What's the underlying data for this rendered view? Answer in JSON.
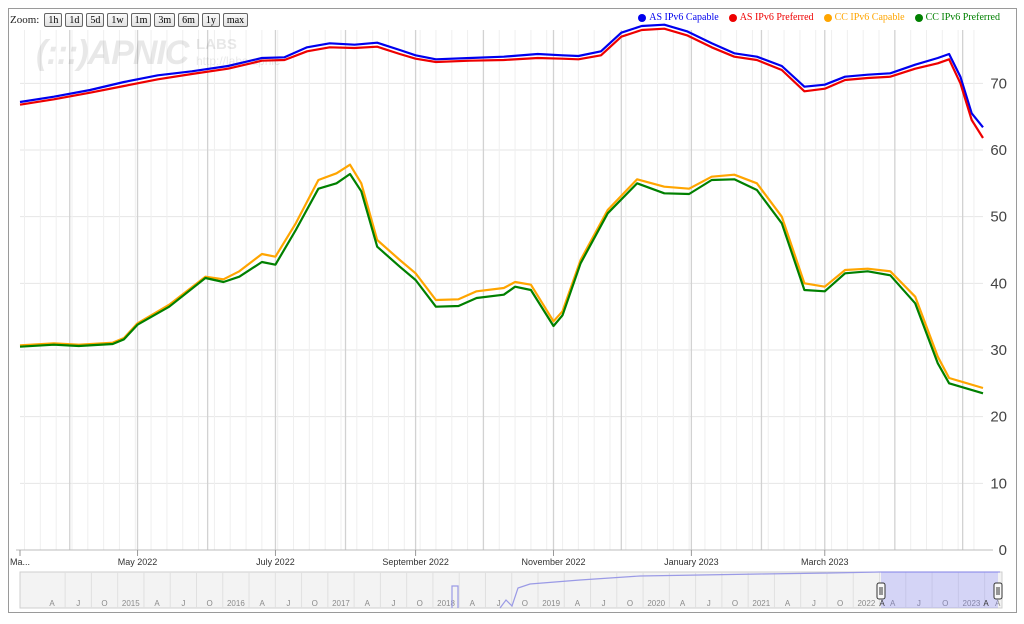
{
  "toolbar": {
    "zoom_label": "Zoom:",
    "buttons": [
      "1h",
      "1d",
      "5d",
      "1w",
      "1m",
      "3m",
      "6m",
      "1y",
      "max"
    ]
  },
  "legend": [
    {
      "label": "AS IPv6 Capable",
      "color": "#0000ee"
    },
    {
      "label": "AS IPv6 Preferred",
      "color": "#ee0000"
    },
    {
      "label": "CC IPv6 Capable",
      "color": "#ffa500"
    },
    {
      "label": "CC IPv6 Preferred",
      "color": "#008000"
    }
  ],
  "watermark": {
    "logo": "(:::)APNIC",
    "labs": "LABS",
    "url": "http://labs.apnic"
  },
  "chart_data": {
    "type": "line",
    "x_axis": {
      "type": "date",
      "range": [
        "2022-03-10",
        "2023-05-10"
      ],
      "tick_labels": [
        {
          "date": "2022-03-10",
          "label": "Ma..."
        },
        {
          "date": "2022-05-01",
          "label": "May 2022"
        },
        {
          "date": "2022-07-01",
          "label": "July 2022"
        },
        {
          "date": "2022-09-01",
          "label": "September 2022"
        },
        {
          "date": "2022-11-01",
          "label": "November 2022"
        },
        {
          "date": "2023-01-01",
          "label": "January 2023"
        },
        {
          "date": "2023-03-01",
          "label": "March 2023"
        }
      ]
    },
    "y_axis": {
      "min": 0,
      "max": 78,
      "ticks": [
        0,
        10,
        20,
        30,
        40,
        50,
        60,
        70
      ],
      "position": "right"
    },
    "grid": true,
    "legend_position": "top-right",
    "series": [
      {
        "name": "AS IPv6 Capable",
        "color": "#0000ee",
        "points": [
          [
            "2022-03-10",
            67.2
          ],
          [
            "2022-03-25",
            68.0
          ],
          [
            "2022-04-10",
            69.0
          ],
          [
            "2022-04-25",
            70.2
          ],
          [
            "2022-05-10",
            71.2
          ],
          [
            "2022-05-25",
            71.8
          ],
          [
            "2022-06-10",
            72.6
          ],
          [
            "2022-06-25",
            73.8
          ],
          [
            "2022-07-05",
            73.9
          ],
          [
            "2022-07-15",
            75.4
          ],
          [
            "2022-07-25",
            76.0
          ],
          [
            "2022-08-05",
            75.8
          ],
          [
            "2022-08-15",
            76.1
          ],
          [
            "2022-08-25",
            75.0
          ],
          [
            "2022-09-01",
            74.2
          ],
          [
            "2022-09-10",
            73.6
          ],
          [
            "2022-09-25",
            73.8
          ],
          [
            "2022-10-10",
            74.0
          ],
          [
            "2022-10-25",
            74.4
          ],
          [
            "2022-11-05",
            74.2
          ],
          [
            "2022-11-12",
            74.1
          ],
          [
            "2022-11-22",
            74.8
          ],
          [
            "2022-12-01",
            77.6
          ],
          [
            "2022-12-10",
            78.6
          ],
          [
            "2022-12-20",
            78.8
          ],
          [
            "2022-12-30",
            77.8
          ],
          [
            "2023-01-10",
            76.0
          ],
          [
            "2023-01-20",
            74.5
          ],
          [
            "2023-01-30",
            74.0
          ],
          [
            "2023-02-10",
            72.6
          ],
          [
            "2023-02-20",
            69.5
          ],
          [
            "2023-03-01",
            69.8
          ],
          [
            "2023-03-10",
            71.0
          ],
          [
            "2023-03-20",
            71.3
          ],
          [
            "2023-03-30",
            71.5
          ],
          [
            "2023-04-10",
            72.8
          ],
          [
            "2023-04-20",
            73.8
          ],
          [
            "2023-04-25",
            74.4
          ],
          [
            "2023-04-30",
            71.0
          ],
          [
            "2023-05-05",
            65.5
          ],
          [
            "2023-05-10",
            63.4
          ]
        ]
      },
      {
        "name": "AS IPv6 Preferred",
        "color": "#ee0000",
        "points": [
          [
            "2022-03-10",
            66.8
          ],
          [
            "2022-03-25",
            67.6
          ],
          [
            "2022-04-10",
            68.6
          ],
          [
            "2022-04-25",
            69.6
          ],
          [
            "2022-05-10",
            70.6
          ],
          [
            "2022-05-25",
            71.4
          ],
          [
            "2022-06-10",
            72.2
          ],
          [
            "2022-06-25",
            73.4
          ],
          [
            "2022-07-05",
            73.5
          ],
          [
            "2022-07-15",
            74.8
          ],
          [
            "2022-07-25",
            75.4
          ],
          [
            "2022-08-05",
            75.3
          ],
          [
            "2022-08-15",
            75.5
          ],
          [
            "2022-08-25",
            74.4
          ],
          [
            "2022-09-01",
            73.7
          ],
          [
            "2022-09-10",
            73.2
          ],
          [
            "2022-09-25",
            73.4
          ],
          [
            "2022-10-10",
            73.5
          ],
          [
            "2022-10-25",
            73.8
          ],
          [
            "2022-11-05",
            73.7
          ],
          [
            "2022-11-12",
            73.6
          ],
          [
            "2022-11-22",
            74.2
          ],
          [
            "2022-12-01",
            77.0
          ],
          [
            "2022-12-10",
            78.0
          ],
          [
            "2022-12-20",
            78.2
          ],
          [
            "2022-12-30",
            77.2
          ],
          [
            "2023-01-10",
            75.4
          ],
          [
            "2023-01-20",
            74.0
          ],
          [
            "2023-01-30",
            73.5
          ],
          [
            "2023-02-10",
            72.0
          ],
          [
            "2023-02-20",
            68.8
          ],
          [
            "2023-03-01",
            69.2
          ],
          [
            "2023-03-10",
            70.5
          ],
          [
            "2023-03-20",
            70.8
          ],
          [
            "2023-03-30",
            71.0
          ],
          [
            "2023-04-10",
            72.2
          ],
          [
            "2023-04-20",
            73.0
          ],
          [
            "2023-04-25",
            73.6
          ],
          [
            "2023-04-30",
            70.0
          ],
          [
            "2023-05-05",
            64.5
          ],
          [
            "2023-05-10",
            61.8
          ]
        ]
      },
      {
        "name": "CC IPv6 Capable",
        "color": "#ffa500",
        "points": [
          [
            "2022-03-10",
            30.7
          ],
          [
            "2022-03-25",
            31.0
          ],
          [
            "2022-04-05",
            30.8
          ],
          [
            "2022-04-20",
            31.1
          ],
          [
            "2022-04-25",
            31.8
          ],
          [
            "2022-05-01",
            34.0
          ],
          [
            "2022-05-15",
            36.8
          ],
          [
            "2022-05-31",
            41.0
          ],
          [
            "2022-06-08",
            40.6
          ],
          [
            "2022-06-15",
            41.8
          ],
          [
            "2022-06-25",
            44.4
          ],
          [
            "2022-07-01",
            44.0
          ],
          [
            "2022-07-10",
            49.0
          ],
          [
            "2022-07-20",
            55.5
          ],
          [
            "2022-07-28",
            56.5
          ],
          [
            "2022-08-03",
            57.8
          ],
          [
            "2022-08-08",
            55.0
          ],
          [
            "2022-08-15",
            46.5
          ],
          [
            "2022-08-25",
            43.5
          ],
          [
            "2022-09-01",
            41.5
          ],
          [
            "2022-09-10",
            37.5
          ],
          [
            "2022-09-20",
            37.6
          ],
          [
            "2022-09-28",
            38.8
          ],
          [
            "2022-10-10",
            39.3
          ],
          [
            "2022-10-15",
            40.2
          ],
          [
            "2022-10-22",
            39.8
          ],
          [
            "2022-11-01",
            34.3
          ],
          [
            "2022-11-05",
            35.8
          ],
          [
            "2022-11-13",
            43.5
          ],
          [
            "2022-11-25",
            51.0
          ],
          [
            "2022-12-08",
            55.6
          ],
          [
            "2022-12-20",
            54.5
          ],
          [
            "2022-12-31",
            54.2
          ],
          [
            "2023-01-10",
            56.0
          ],
          [
            "2023-01-20",
            56.3
          ],
          [
            "2023-01-30",
            55.0
          ],
          [
            "2023-02-10",
            50.0
          ],
          [
            "2023-02-20",
            40.0
          ],
          [
            "2023-03-01",
            39.5
          ],
          [
            "2023-03-10",
            42.0
          ],
          [
            "2023-03-20",
            42.2
          ],
          [
            "2023-03-30",
            41.8
          ],
          [
            "2023-04-10",
            38.0
          ],
          [
            "2023-04-20",
            29.0
          ],
          [
            "2023-04-25",
            25.8
          ],
          [
            "2023-05-10",
            24.3
          ]
        ]
      },
      {
        "name": "CC IPv6 Preferred",
        "color": "#008000",
        "points": [
          [
            "2022-03-10",
            30.5
          ],
          [
            "2022-03-25",
            30.8
          ],
          [
            "2022-04-05",
            30.6
          ],
          [
            "2022-04-20",
            30.9
          ],
          [
            "2022-04-25",
            31.6
          ],
          [
            "2022-05-01",
            33.8
          ],
          [
            "2022-05-15",
            36.5
          ],
          [
            "2022-05-31",
            40.8
          ],
          [
            "2022-06-08",
            40.2
          ],
          [
            "2022-06-15",
            41.0
          ],
          [
            "2022-06-25",
            43.2
          ],
          [
            "2022-07-01",
            42.8
          ],
          [
            "2022-07-10",
            48.0
          ],
          [
            "2022-07-20",
            54.2
          ],
          [
            "2022-07-28",
            55.0
          ],
          [
            "2022-08-03",
            56.4
          ],
          [
            "2022-08-08",
            53.8
          ],
          [
            "2022-08-15",
            45.5
          ],
          [
            "2022-08-25",
            42.5
          ],
          [
            "2022-09-01",
            40.5
          ],
          [
            "2022-09-10",
            36.5
          ],
          [
            "2022-09-20",
            36.6
          ],
          [
            "2022-09-28",
            37.8
          ],
          [
            "2022-10-10",
            38.3
          ],
          [
            "2022-10-15",
            39.5
          ],
          [
            "2022-10-22",
            39.0
          ],
          [
            "2022-11-01",
            33.6
          ],
          [
            "2022-11-05",
            35.2
          ],
          [
            "2022-11-13",
            43.0
          ],
          [
            "2022-11-25",
            50.5
          ],
          [
            "2022-12-08",
            55.0
          ],
          [
            "2022-12-20",
            53.5
          ],
          [
            "2022-12-31",
            53.4
          ],
          [
            "2023-01-10",
            55.5
          ],
          [
            "2023-01-20",
            55.6
          ],
          [
            "2023-01-30",
            54.0
          ],
          [
            "2023-02-10",
            49.0
          ],
          [
            "2023-02-20",
            39.0
          ],
          [
            "2023-03-01",
            38.8
          ],
          [
            "2023-03-10",
            41.5
          ],
          [
            "2023-03-20",
            41.8
          ],
          [
            "2023-03-30",
            41.2
          ],
          [
            "2023-04-10",
            37.0
          ],
          [
            "2023-04-20",
            28.0
          ],
          [
            "2023-04-25",
            25.0
          ],
          [
            "2023-05-10",
            23.5
          ]
        ]
      }
    ],
    "navigator": {
      "tick_labels": [
        "A",
        "J",
        "O",
        "2015",
        "A",
        "J",
        "O",
        "2016",
        "A",
        "J",
        "O",
        "2017",
        "A",
        "J",
        "O",
        "2018",
        "A",
        "J",
        "O",
        "2019",
        "A",
        "J",
        "O",
        "2020",
        "A",
        "J",
        "O",
        "2021",
        "A",
        "J",
        "O",
        "2022",
        "A",
        "J",
        "O",
        "2023",
        "A"
      ],
      "range_start_label": "A",
      "range_end_label": "A"
    }
  }
}
